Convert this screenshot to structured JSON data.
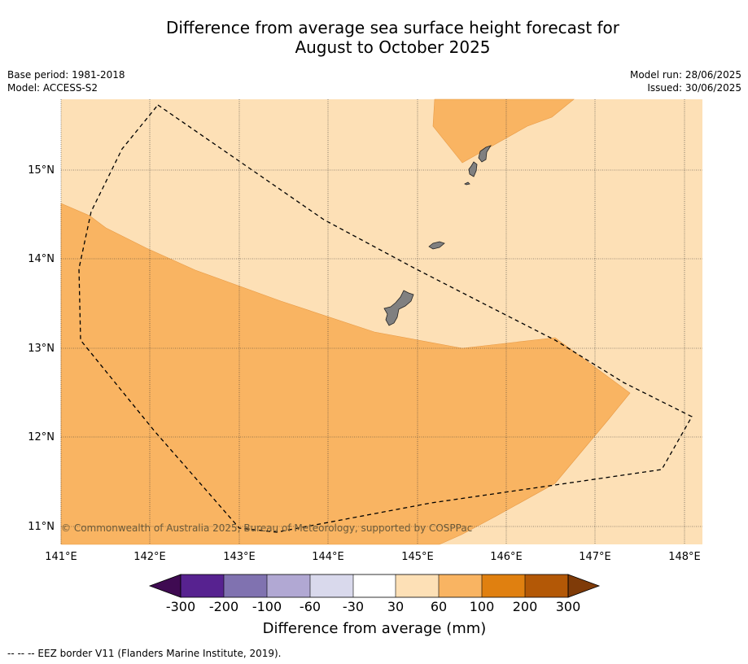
{
  "header": {
    "title_line1": "Difference from average sea surface height forecast for",
    "title_line2": "August to October 2025",
    "base_period": "Base period: 1981-2018",
    "model": "Model: ACCESS-S2",
    "model_run": "Model run: 28/06/2025",
    "issued": "Issued: 30/06/2025"
  },
  "map": {
    "lon_ticks": [
      "141°E",
      "142°E",
      "143°E",
      "144°E",
      "145°E",
      "146°E",
      "147°E",
      "148°E"
    ],
    "lat_ticks": [
      "15°N",
      "14°N",
      "13°N",
      "12°N",
      "11°N"
    ],
    "credit": "© Commonwealth of Australia 2025, Bureau of Meteorology, supported by COSPPac",
    "colors": {
      "light_band": "#fde0b6",
      "mid_band": "#f9b462",
      "land": "#808080"
    }
  },
  "colorbar": {
    "title": "Difference from average (mm)",
    "ticks": [
      "-300",
      "-200",
      "-100",
      "-60",
      "-30",
      "30",
      "60",
      "100",
      "200",
      "300"
    ],
    "colors": [
      "#3f0a52",
      "#572290",
      "#8072b0",
      "#b1a8d3",
      "#d9d9ec",
      "#ffffff",
      "#fde0b6",
      "#f9b462",
      "#e08010",
      "#b35806",
      "#7f3b08"
    ]
  },
  "footer": {
    "eez_legend": "--  --  -- EEZ border V11 (Flanders Marine Institute, 2019)."
  }
}
